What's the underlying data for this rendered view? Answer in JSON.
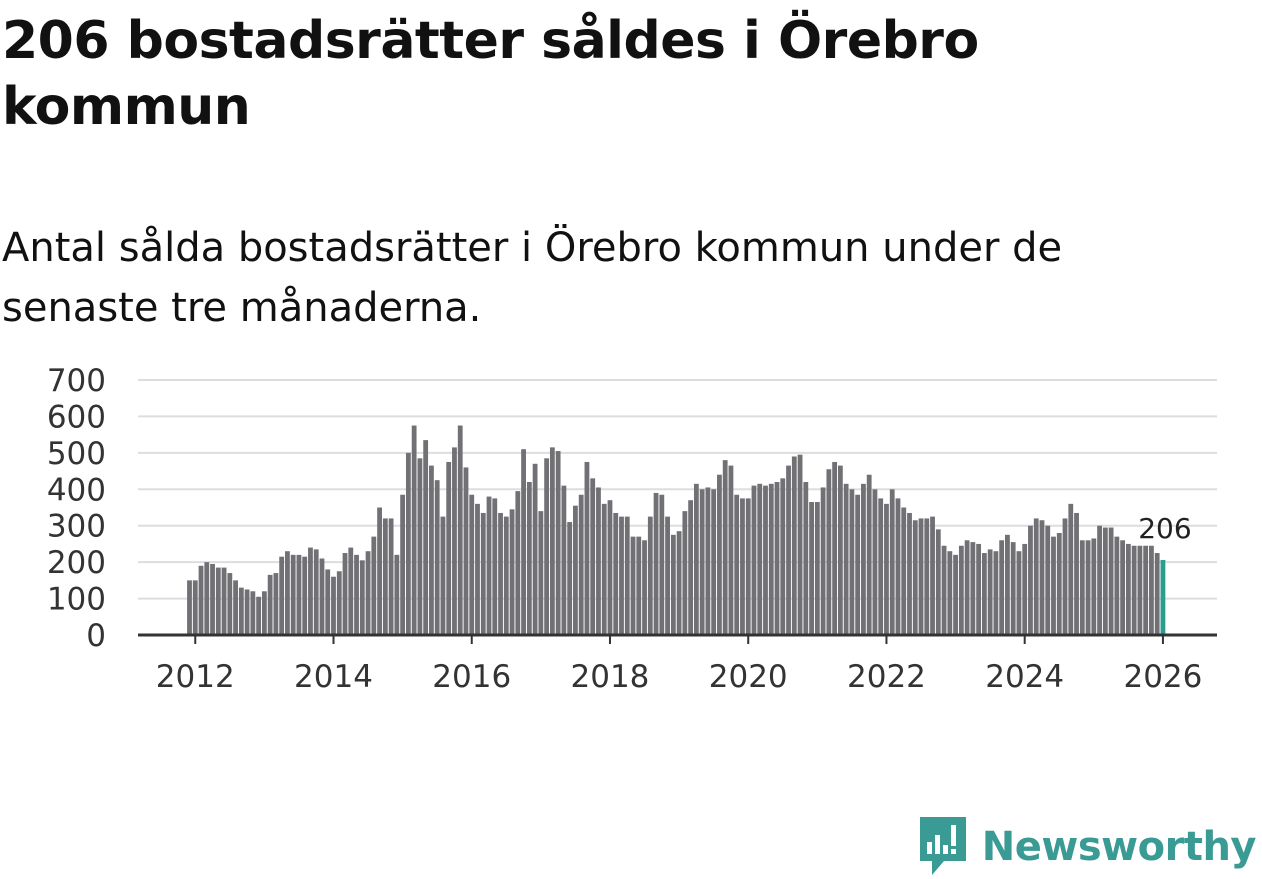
{
  "title": "206 bostadsrätter såldes i Örebro kommun",
  "subtitle": "Antal sålda bostadsrätter i Örebro kommun under de senaste tre månaderna.",
  "brand": {
    "name": "Newsworthy",
    "icon": "newsworthy-logo-icon",
    "color": "#3a9a94"
  },
  "colors": {
    "bar": "#707075",
    "highlight": "#2a9d8f",
    "grid": "#dddddd",
    "axis": "#333333"
  },
  "chart_data": {
    "type": "bar",
    "title": "",
    "xlabel": "",
    "ylabel": "",
    "ylim": [
      0,
      700
    ],
    "y_ticks": [
      0,
      100,
      200,
      300,
      400,
      500,
      600,
      700
    ],
    "x_ticks": [
      "2012",
      "2014",
      "2016",
      "2018",
      "2020",
      "2022",
      "2024",
      "2026"
    ],
    "grid": true,
    "start": "2011-12",
    "highlight_label": "206",
    "values": [
      150,
      150,
      190,
      200,
      195,
      185,
      185,
      170,
      150,
      130,
      125,
      120,
      105,
      120,
      165,
      170,
      215,
      230,
      220,
      220,
      215,
      240,
      235,
      210,
      180,
      160,
      175,
      225,
      240,
      220,
      205,
      230,
      270,
      350,
      320,
      320,
      220,
      385,
      500,
      575,
      485,
      535,
      465,
      425,
      325,
      475,
      515,
      575,
      460,
      385,
      360,
      335,
      380,
      375,
      335,
      325,
      345,
      395,
      510,
      420,
      470,
      340,
      485,
      515,
      505,
      410,
      310,
      355,
      385,
      475,
      430,
      405,
      360,
      370,
      335,
      325,
      325,
      270,
      270,
      260,
      325,
      390,
      385,
      325,
      275,
      285,
      340,
      370,
      415,
      400,
      405,
      400,
      440,
      480,
      465,
      385,
      375,
      375,
      410,
      415,
      410,
      415,
      420,
      430,
      465,
      490,
      495,
      420,
      365,
      365,
      405,
      455,
      475,
      465,
      415,
      400,
      385,
      415,
      440,
      400,
      375,
      360,
      400,
      375,
      350,
      335,
      315,
      320,
      320,
      325,
      290,
      245,
      230,
      220,
      245,
      260,
      255,
      250,
      225,
      235,
      230,
      260,
      275,
      255,
      230,
      250,
      300,
      320,
      315,
      300,
      270,
      280,
      320,
      360,
      335,
      260,
      260,
      265,
      300,
      295,
      295,
      270,
      260,
      250,
      245,
      245,
      245,
      245,
      225,
      206
    ]
  }
}
